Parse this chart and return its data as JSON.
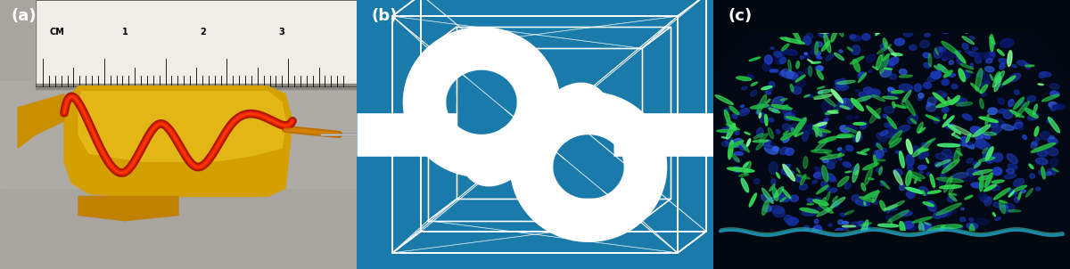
{
  "panels": [
    "(a)",
    "(b)",
    "(c)"
  ],
  "label_color": "white",
  "label_fontsize": 13,
  "label_fontweight": "bold",
  "border_color": "#2299bb",
  "border_linewidth": 2.5,
  "fig_width": 12.0,
  "fig_height": 3.02,
  "bg_color_a_top": "#c8c4bc",
  "bg_color_a_bot": "#b0a898",
  "bg_color_b": "#1a7aaa",
  "bg_color_c": "#020510",
  "ruler_bg": "#f0ede8",
  "ruler_border": "#222222",
  "graft_yellow": "#e8b800",
  "graft_orange": "#d96000",
  "graft_red": "#cc2200",
  "wire_color": "#ffffff",
  "cell_blue_dark": "#0a1870",
  "cell_blue_mid": "#1a3aaa",
  "cell_blue_bright": "#2255dd",
  "cell_green": "#22cc44",
  "cell_green2": "#44ee66"
}
